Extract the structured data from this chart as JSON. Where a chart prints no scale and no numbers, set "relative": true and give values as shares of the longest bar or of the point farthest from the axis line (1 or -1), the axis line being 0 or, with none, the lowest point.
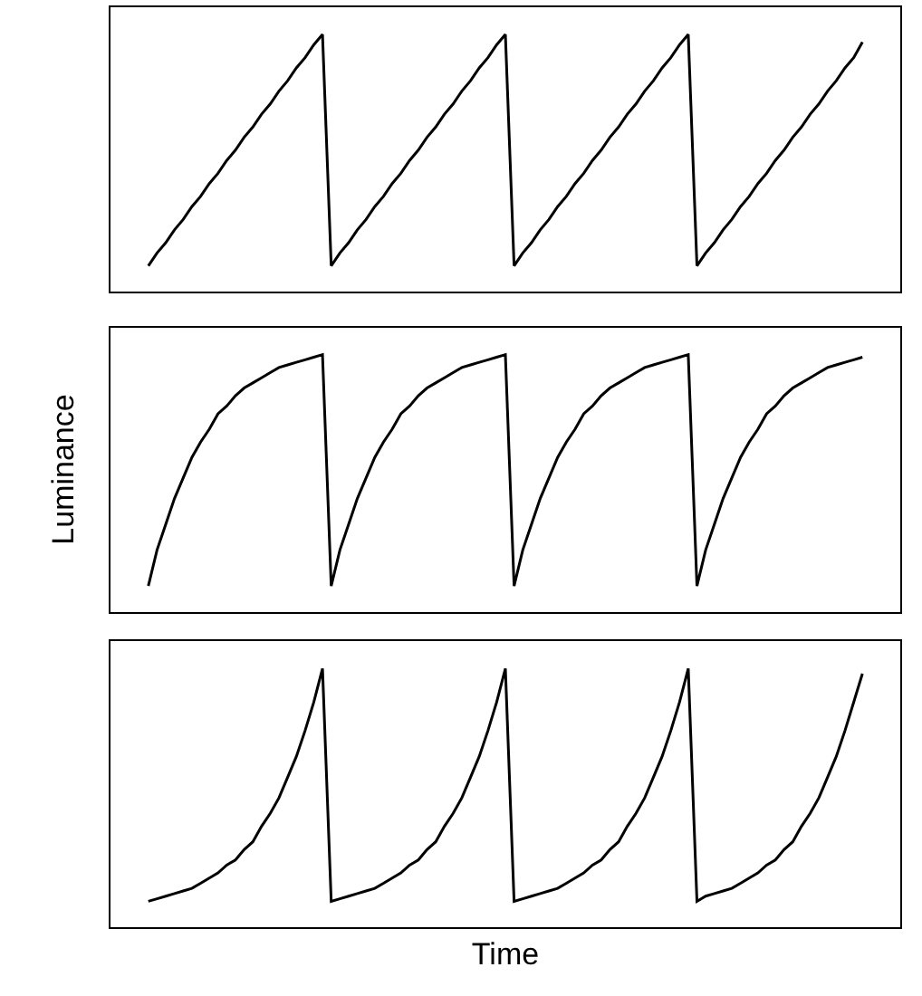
{
  "chart_data": [
    {
      "type": "line",
      "relative": true,
      "tick_labels": false,
      "color": "#000000",
      "categories": [
        null,
        null,
        null,
        null,
        null,
        null,
        null,
        null,
        null,
        null,
        null,
        null,
        null,
        null,
        null,
        null,
        null,
        null,
        null,
        null,
        null,
        null,
        null,
        null,
        null,
        null,
        null,
        null,
        null,
        null,
        null,
        null,
        null,
        null,
        null,
        null,
        null,
        null,
        null,
        null,
        null,
        null,
        null,
        null,
        null,
        null,
        null,
        null,
        null,
        null,
        null,
        null,
        null,
        null,
        null,
        null,
        null,
        null,
        null,
        null,
        null,
        null,
        null,
        null,
        null,
        null,
        null,
        null,
        null,
        null,
        null,
        null,
        null,
        null,
        null,
        null,
        null,
        null,
        null,
        null,
        null,
        null,
        null
      ],
      "values": [
        0.1,
        0.15,
        0.19,
        0.24,
        0.28,
        0.33,
        0.37,
        0.42,
        0.46,
        0.51,
        0.55,
        0.6,
        0.64,
        0.69,
        0.73,
        0.78,
        0.82,
        0.87,
        0.91,
        0.96,
        1,
        0.1,
        0.15,
        0.19,
        0.24,
        0.28,
        0.33,
        0.37,
        0.42,
        0.46,
        0.51,
        0.55,
        0.6,
        0.64,
        0.69,
        0.73,
        0.78,
        0.82,
        0.87,
        0.91,
        0.96,
        1,
        0.1,
        0.15,
        0.19,
        0.24,
        0.28,
        0.33,
        0.37,
        0.42,
        0.46,
        0.51,
        0.55,
        0.6,
        0.64,
        0.69,
        0.73,
        0.78,
        0.82,
        0.87,
        0.91,
        0.96,
        1,
        0.1,
        0.15,
        0.19,
        0.24,
        0.28,
        0.33,
        0.37,
        0.42,
        0.46,
        0.51,
        0.55,
        0.6,
        0.64,
        0.69,
        0.73,
        0.78,
        0.82,
        0.87,
        0.91,
        0.97
      ]
    },
    {
      "type": "line",
      "relative": true,
      "tick_labels": false,
      "color": "#000000",
      "ylabel": "Luminance",
      "categories": [
        null,
        null,
        null,
        null,
        null,
        null,
        null,
        null,
        null,
        null,
        null,
        null,
        null,
        null,
        null,
        null,
        null,
        null,
        null,
        null,
        null,
        null,
        null,
        null,
        null,
        null,
        null,
        null,
        null,
        null,
        null,
        null,
        null,
        null,
        null,
        null,
        null,
        null,
        null,
        null,
        null,
        null,
        null,
        null,
        null,
        null,
        null,
        null,
        null,
        null,
        null,
        null,
        null,
        null,
        null,
        null,
        null,
        null,
        null,
        null,
        null,
        null,
        null,
        null,
        null,
        null,
        null,
        null,
        null,
        null,
        null,
        null,
        null,
        null,
        null,
        null,
        null,
        null,
        null,
        null,
        null,
        null,
        null
      ],
      "values": [
        0.1,
        0.24,
        0.34,
        0.44,
        0.52,
        0.6,
        0.66,
        0.71,
        0.77,
        0.8,
        0.84,
        0.87,
        0.89,
        0.91,
        0.93,
        0.95,
        0.96,
        0.97,
        0.98,
        0.99,
        1,
        0.1,
        0.24,
        0.34,
        0.44,
        0.52,
        0.6,
        0.66,
        0.71,
        0.77,
        0.8,
        0.84,
        0.87,
        0.89,
        0.91,
        0.93,
        0.95,
        0.96,
        0.97,
        0.98,
        0.99,
        1,
        0.1,
        0.24,
        0.34,
        0.44,
        0.52,
        0.6,
        0.66,
        0.71,
        0.77,
        0.8,
        0.84,
        0.87,
        0.89,
        0.91,
        0.93,
        0.95,
        0.96,
        0.97,
        0.98,
        0.99,
        1,
        0.1,
        0.24,
        0.34,
        0.44,
        0.52,
        0.6,
        0.66,
        0.71,
        0.77,
        0.8,
        0.84,
        0.87,
        0.89,
        0.91,
        0.93,
        0.95,
        0.96,
        0.97,
        0.98,
        0.99
      ]
    },
    {
      "type": "line",
      "relative": true,
      "tick_labels": false,
      "color": "#000000",
      "xlabel": "Time",
      "categories": [
        null,
        null,
        null,
        null,
        null,
        null,
        null,
        null,
        null,
        null,
        null,
        null,
        null,
        null,
        null,
        null,
        null,
        null,
        null,
        null,
        null,
        null,
        null,
        null,
        null,
        null,
        null,
        null,
        null,
        null,
        null,
        null,
        null,
        null,
        null,
        null,
        null,
        null,
        null,
        null,
        null,
        null,
        null,
        null,
        null,
        null,
        null,
        null,
        null,
        null,
        null,
        null,
        null,
        null,
        null,
        null,
        null,
        null,
        null,
        null,
        null,
        null,
        null,
        null,
        null,
        null,
        null,
        null,
        null,
        null,
        null,
        null,
        null,
        null,
        null,
        null,
        null,
        null,
        null,
        null,
        null,
        null,
        null
      ],
      "values": [
        0.1,
        0.11,
        0.12,
        0.13,
        0.14,
        0.15,
        0.17,
        0.19,
        0.21,
        0.24,
        0.26,
        0.3,
        0.33,
        0.39,
        0.44,
        0.5,
        0.58,
        0.66,
        0.76,
        0.87,
        1,
        0.1,
        0.11,
        0.12,
        0.13,
        0.14,
        0.15,
        0.17,
        0.19,
        0.21,
        0.24,
        0.26,
        0.3,
        0.33,
        0.39,
        0.44,
        0.5,
        0.58,
        0.66,
        0.76,
        0.87,
        1,
        0.1,
        0.11,
        0.12,
        0.13,
        0.14,
        0.15,
        0.17,
        0.19,
        0.21,
        0.24,
        0.26,
        0.3,
        0.33,
        0.39,
        0.44,
        0.5,
        0.58,
        0.66,
        0.76,
        0.87,
        1,
        0.1,
        0.12,
        0.13,
        0.14,
        0.15,
        0.17,
        0.19,
        0.21,
        0.24,
        0.26,
        0.3,
        0.33,
        0.39,
        0.44,
        0.5,
        0.58,
        0.66,
        0.76,
        0.87,
        0.98
      ]
    }
  ]
}
